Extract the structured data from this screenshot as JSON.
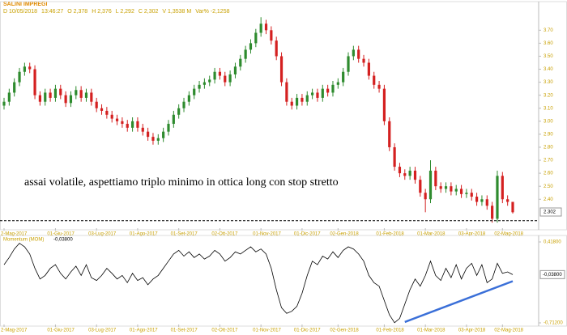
{
  "header": {
    "symbol": "SALINI IMPREGI",
    "info": [
      "D 10/05/2018",
      "13:46:27",
      "O 2,378",
      "H 2,376",
      "L 2,292",
      "C 2,302",
      "V 1,3538 M",
      "Var% -2,1258"
    ]
  },
  "chart_data": [
    {
      "type": "candlestick",
      "up_color": "#2e8b2e",
      "down_color": "#d42020",
      "annotation": "assai volatile, aspettiamo triplo minimo in ottica long con stop stretto",
      "ylim": [
        2.19,
        3.87
      ],
      "yticks": [
        {
          "value": 2.4,
          "label": "2.40"
        },
        {
          "value": 2.5,
          "label": "2.50"
        },
        {
          "value": 2.6,
          "label": "2.60"
        },
        {
          "value": 2.7,
          "label": "2.70"
        },
        {
          "value": 2.8,
          "label": "2.80"
        },
        {
          "value": 2.9,
          "label": "2.90"
        },
        {
          "value": 3.0,
          "label": "3.00"
        },
        {
          "value": 3.1,
          "label": "3.10"
        },
        {
          "value": 3.2,
          "label": "3.20"
        },
        {
          "value": 3.3,
          "label": "3.30"
        },
        {
          "value": 3.4,
          "label": "3.40"
        },
        {
          "value": 3.5,
          "label": "3.50"
        },
        {
          "value": 3.6,
          "label": "3.60"
        },
        {
          "value": 3.7,
          "label": "3.70"
        }
      ],
      "last_price": {
        "value": 2.302,
        "label": "2.302"
      },
      "support_line": 2.235,
      "xticks": [
        {
          "value": 0,
          "label": "2-Mag-2017"
        },
        {
          "value": 10,
          "label": "01-Giu-2017"
        },
        {
          "value": 18,
          "label": "03-Lug-2017"
        },
        {
          "value": 26,
          "label": "01-Ago-2017"
        },
        {
          "value": 34,
          "label": "01-Set-2017"
        },
        {
          "value": 42,
          "label": "02-Ott-2017"
        },
        {
          "value": 50,
          "label": "01-Nov-2017"
        },
        {
          "value": 58,
          "label": "01-Dic-2017"
        },
        {
          "value": 65,
          "label": "02-Gen-2018"
        },
        {
          "value": 74,
          "label": "01-Feb-2018"
        },
        {
          "value": 82,
          "label": "01-Mar-2018"
        },
        {
          "value": 90,
          "label": "03-Apr-2018"
        },
        {
          "value": 97,
          "label": "02-Mag-2018"
        }
      ],
      "candles": [
        [
          3.12,
          3.18,
          3.09,
          3.15
        ],
        [
          3.15,
          3.25,
          3.12,
          3.22
        ],
        [
          3.22,
          3.33,
          3.19,
          3.3
        ],
        [
          3.3,
          3.41,
          3.27,
          3.38
        ],
        [
          3.38,
          3.45,
          3.35,
          3.42
        ],
        [
          3.42,
          3.45,
          3.37,
          3.4
        ],
        [
          3.4,
          3.43,
          3.17,
          3.2
        ],
        [
          3.2,
          3.23,
          3.12,
          3.15
        ],
        [
          3.15,
          3.25,
          3.12,
          3.22
        ],
        [
          3.22,
          3.25,
          3.15,
          3.18
        ],
        [
          3.18,
          3.28,
          3.15,
          3.25
        ],
        [
          3.25,
          3.28,
          3.17,
          3.2
        ],
        [
          3.2,
          3.23,
          3.11,
          3.14
        ],
        [
          3.14,
          3.23,
          3.11,
          3.2
        ],
        [
          3.2,
          3.27,
          3.17,
          3.24
        ],
        [
          3.24,
          3.27,
          3.15,
          3.18
        ],
        [
          3.18,
          3.25,
          3.15,
          3.22
        ],
        [
          3.22,
          3.25,
          3.12,
          3.15
        ],
        [
          3.15,
          3.18,
          3.07,
          3.1
        ],
        [
          3.1,
          3.13,
          3.05,
          3.08
        ],
        [
          3.08,
          3.11,
          3.02,
          3.05
        ],
        [
          3.05,
          3.08,
          2.99,
          3.02
        ],
        [
          3.02,
          3.05,
          2.97,
          3.0
        ],
        [
          3.0,
          3.03,
          2.95,
          2.98
        ],
        [
          2.98,
          3.01,
          2.92,
          2.95
        ],
        [
          2.95,
          3.03,
          2.92,
          3.0
        ],
        [
          3.0,
          3.03,
          2.92,
          2.95
        ],
        [
          2.95,
          2.98,
          2.89,
          2.92
        ],
        [
          2.92,
          2.95,
          2.85,
          2.88
        ],
        [
          2.88,
          2.91,
          2.82,
          2.85
        ],
        [
          2.85,
          2.9,
          2.82,
          2.87
        ],
        [
          2.87,
          2.95,
          2.84,
          2.92
        ],
        [
          2.92,
          3.01,
          2.89,
          2.98
        ],
        [
          2.98,
          3.08,
          2.95,
          3.05
        ],
        [
          3.05,
          3.13,
          3.02,
          3.1
        ],
        [
          3.1,
          3.18,
          3.07,
          3.15
        ],
        [
          3.15,
          3.23,
          3.12,
          3.2
        ],
        [
          3.2,
          3.28,
          3.17,
          3.25
        ],
        [
          3.25,
          3.31,
          3.22,
          3.28
        ],
        [
          3.28,
          3.33,
          3.25,
          3.3
        ],
        [
          3.3,
          3.35,
          3.27,
          3.32
        ],
        [
          3.32,
          3.41,
          3.29,
          3.38
        ],
        [
          3.38,
          3.41,
          3.32,
          3.35
        ],
        [
          3.35,
          3.38,
          3.27,
          3.3
        ],
        [
          3.3,
          3.39,
          3.27,
          3.36
        ],
        [
          3.36,
          3.45,
          3.33,
          3.42
        ],
        [
          3.42,
          3.51,
          3.39,
          3.48
        ],
        [
          3.48,
          3.58,
          3.45,
          3.55
        ],
        [
          3.55,
          3.63,
          3.52,
          3.6
        ],
        [
          3.6,
          3.71,
          3.57,
          3.68
        ],
        [
          3.68,
          3.8,
          3.65,
          3.75
        ],
        [
          3.75,
          3.78,
          3.67,
          3.7
        ],
        [
          3.7,
          3.73,
          3.59,
          3.62
        ],
        [
          3.62,
          3.65,
          3.47,
          3.5
        ],
        [
          3.5,
          3.53,
          3.27,
          3.3
        ],
        [
          3.3,
          3.33,
          3.12,
          3.15
        ],
        [
          3.15,
          3.18,
          3.09,
          3.12
        ],
        [
          3.12,
          3.21,
          3.09,
          3.18
        ],
        [
          3.18,
          3.21,
          3.12,
          3.15
        ],
        [
          3.15,
          3.23,
          3.12,
          3.2
        ],
        [
          3.2,
          3.25,
          3.17,
          3.22
        ],
        [
          3.22,
          3.25,
          3.15,
          3.18
        ],
        [
          3.18,
          3.28,
          3.15,
          3.25
        ],
        [
          3.25,
          3.28,
          3.19,
          3.22
        ],
        [
          3.22,
          3.31,
          3.19,
          3.28
        ],
        [
          3.28,
          3.33,
          3.25,
          3.3
        ],
        [
          3.3,
          3.41,
          3.27,
          3.38
        ],
        [
          3.38,
          3.53,
          3.35,
          3.5
        ],
        [
          3.5,
          3.58,
          3.47,
          3.55
        ],
        [
          3.55,
          3.58,
          3.45,
          3.48
        ],
        [
          3.48,
          3.51,
          3.42,
          3.45
        ],
        [
          3.45,
          3.48,
          3.32,
          3.35
        ],
        [
          3.35,
          3.38,
          3.25,
          3.28
        ],
        [
          3.28,
          3.31,
          3.22,
          3.25
        ],
        [
          3.25,
          3.28,
          2.97,
          3.0
        ],
        [
          3.0,
          3.03,
          2.77,
          2.8
        ],
        [
          2.8,
          2.83,
          2.62,
          2.65
        ],
        [
          2.65,
          2.68,
          2.57,
          2.6
        ],
        [
          2.6,
          2.63,
          2.55,
          2.58
        ],
        [
          2.58,
          2.65,
          2.55,
          2.62
        ],
        [
          2.62,
          2.65,
          2.52,
          2.55
        ],
        [
          2.55,
          2.58,
          2.42,
          2.45
        ],
        [
          2.45,
          2.48,
          2.3,
          2.4
        ],
        [
          2.4,
          2.7,
          2.37,
          2.62
        ],
        [
          2.62,
          2.65,
          2.47,
          2.5
        ],
        [
          2.5,
          2.53,
          2.45,
          2.48
        ],
        [
          2.48,
          2.53,
          2.45,
          2.5
        ],
        [
          2.5,
          2.53,
          2.43,
          2.46
        ],
        [
          2.46,
          2.51,
          2.43,
          2.48
        ],
        [
          2.48,
          2.51,
          2.41,
          2.44
        ],
        [
          2.44,
          2.48,
          2.41,
          2.45
        ],
        [
          2.45,
          2.48,
          2.39,
          2.42
        ],
        [
          2.42,
          2.45,
          2.35,
          2.38
        ],
        [
          2.38,
          2.43,
          2.35,
          2.4
        ],
        [
          2.4,
          2.43,
          2.32,
          2.35
        ],
        [
          2.35,
          2.38,
          2.22,
          2.25
        ],
        [
          2.25,
          2.62,
          2.22,
          2.58
        ],
        [
          2.58,
          2.61,
          2.37,
          2.4
        ],
        [
          2.4,
          2.43,
          2.35,
          2.38
        ],
        [
          2.38,
          2.38,
          2.29,
          2.3
        ]
      ]
    },
    {
      "type": "line",
      "title": "Momentum (MOM)",
      "color": "#000000",
      "ylim": [
        -0.712,
        0.418
      ],
      "yticks": [
        {
          "value": 0.418,
          "label": "0,41800"
        },
        {
          "value": -0.712,
          "label": "-0,71200"
        }
      ],
      "last_value": {
        "value": -0.038,
        "label": "-0,03800"
      },
      "trendline": {
        "color": "#3a6fd8",
        "x": [
          78,
          99
        ],
        "values": [
          -0.7,
          -0.13
        ]
      },
      "xticks": [
        {
          "value": 0,
          "label": "2-Mag-2017"
        },
        {
          "value": 10,
          "label": "01-Giu-2017"
        },
        {
          "value": 18,
          "label": "03-Lug-2017"
        },
        {
          "value": 26,
          "label": "01-Ago-2017"
        },
        {
          "value": 34,
          "label": "01-Set-2017"
        },
        {
          "value": 42,
          "label": "02-Ott-2017"
        },
        {
          "value": 50,
          "label": "01-Nov-2017"
        },
        {
          "value": 58,
          "label": "01-Dic-2017"
        },
        {
          "value": 65,
          "label": "02-Gen-2018"
        },
        {
          "value": 74,
          "label": "01-Feb-2018"
        },
        {
          "value": 82,
          "label": "01-Mar-2018"
        },
        {
          "value": 90,
          "label": "03-Apr-2018"
        },
        {
          "value": 97,
          "label": "02-Mag-2018"
        }
      ],
      "values": [
        0.1,
        0.2,
        0.32,
        0.4,
        0.35,
        0.25,
        0.05,
        -0.1,
        -0.05,
        0.05,
        0.1,
        -0.02,
        -0.1,
        0.0,
        0.08,
        -0.05,
        0.1,
        -0.08,
        -0.12,
        -0.05,
        0.05,
        -0.02,
        -0.1,
        -0.05,
        -0.15,
        -0.02,
        -0.12,
        -0.08,
        -0.18,
        -0.1,
        -0.05,
        0.05,
        0.15,
        0.25,
        0.3,
        0.22,
        0.28,
        0.2,
        0.25,
        0.18,
        0.22,
        0.3,
        0.25,
        0.15,
        0.2,
        0.28,
        0.25,
        0.3,
        0.35,
        0.28,
        0.32,
        0.25,
        0.05,
        -0.25,
        -0.5,
        -0.58,
        -0.55,
        -0.48,
        -0.3,
        -0.05,
        0.15,
        0.1,
        0.22,
        0.18,
        0.28,
        0.2,
        0.3,
        0.35,
        0.32,
        0.25,
        0.15,
        -0.05,
        -0.15,
        -0.2,
        -0.4,
        -0.6,
        -0.71,
        -0.65,
        -0.45,
        -0.25,
        -0.1,
        -0.2,
        -0.05,
        0.15,
        -0.05,
        -0.12,
        0.05,
        -0.08,
        0.1,
        -0.1,
        0.05,
        0.12,
        -0.05,
        0.1,
        -0.15,
        -0.1,
        0.12,
        -0.02,
        0.0,
        -0.038
      ]
    }
  ]
}
